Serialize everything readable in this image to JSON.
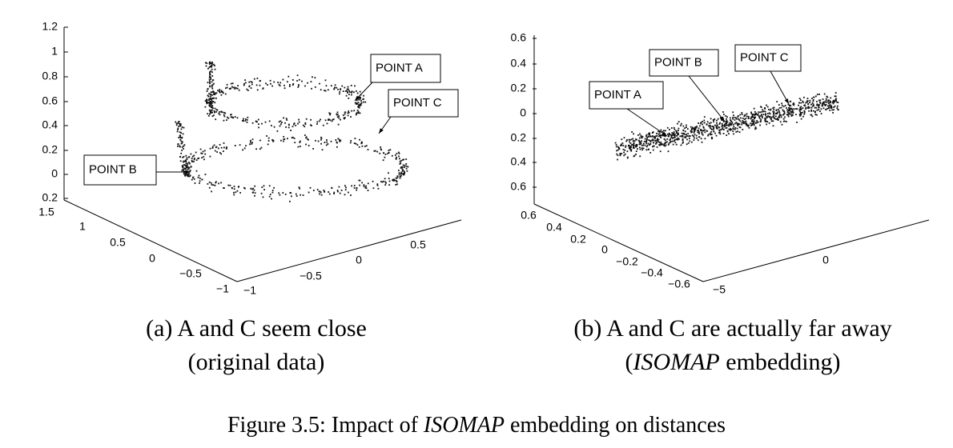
{
  "figure": {
    "panels": [
      {
        "vertical_ticks": [
          "1.2",
          "1",
          "0.8",
          "0.6",
          "0.4",
          "0.2",
          "0",
          "0.2"
        ],
        "depth_ticks": [
          "1.5",
          "1",
          "0.5",
          "0",
          "−0.5",
          "−1"
        ],
        "width_ticks": [
          "−1",
          "−0.5",
          "0",
          "0.5"
        ],
        "callouts": [
          "POINT A",
          "POINT C",
          "POINT B"
        ],
        "caption": [
          "(a) A and C seem close",
          "(original data)"
        ]
      },
      {
        "vertical_ticks": [
          "0.6",
          "0.4",
          "0.2",
          "0",
          "0.2",
          "0.4",
          "0.6"
        ],
        "depth_ticks": [
          "0.6",
          "0.4",
          "0.2",
          "0",
          "−0.2",
          "−0.4",
          "−0.6"
        ],
        "width_ticks": [
          "−5",
          "0"
        ],
        "callouts": [
          "POINT A",
          "POINT B",
          "POINT C"
        ],
        "caption": [
          "(b) A and C are actually far away",
          "(",
          "ISOMAP",
          " embedding)"
        ]
      }
    ],
    "caption": [
      "Figure 3.5: Impact of ",
      "ISOMAP",
      " embedding on distances"
    ]
  }
}
